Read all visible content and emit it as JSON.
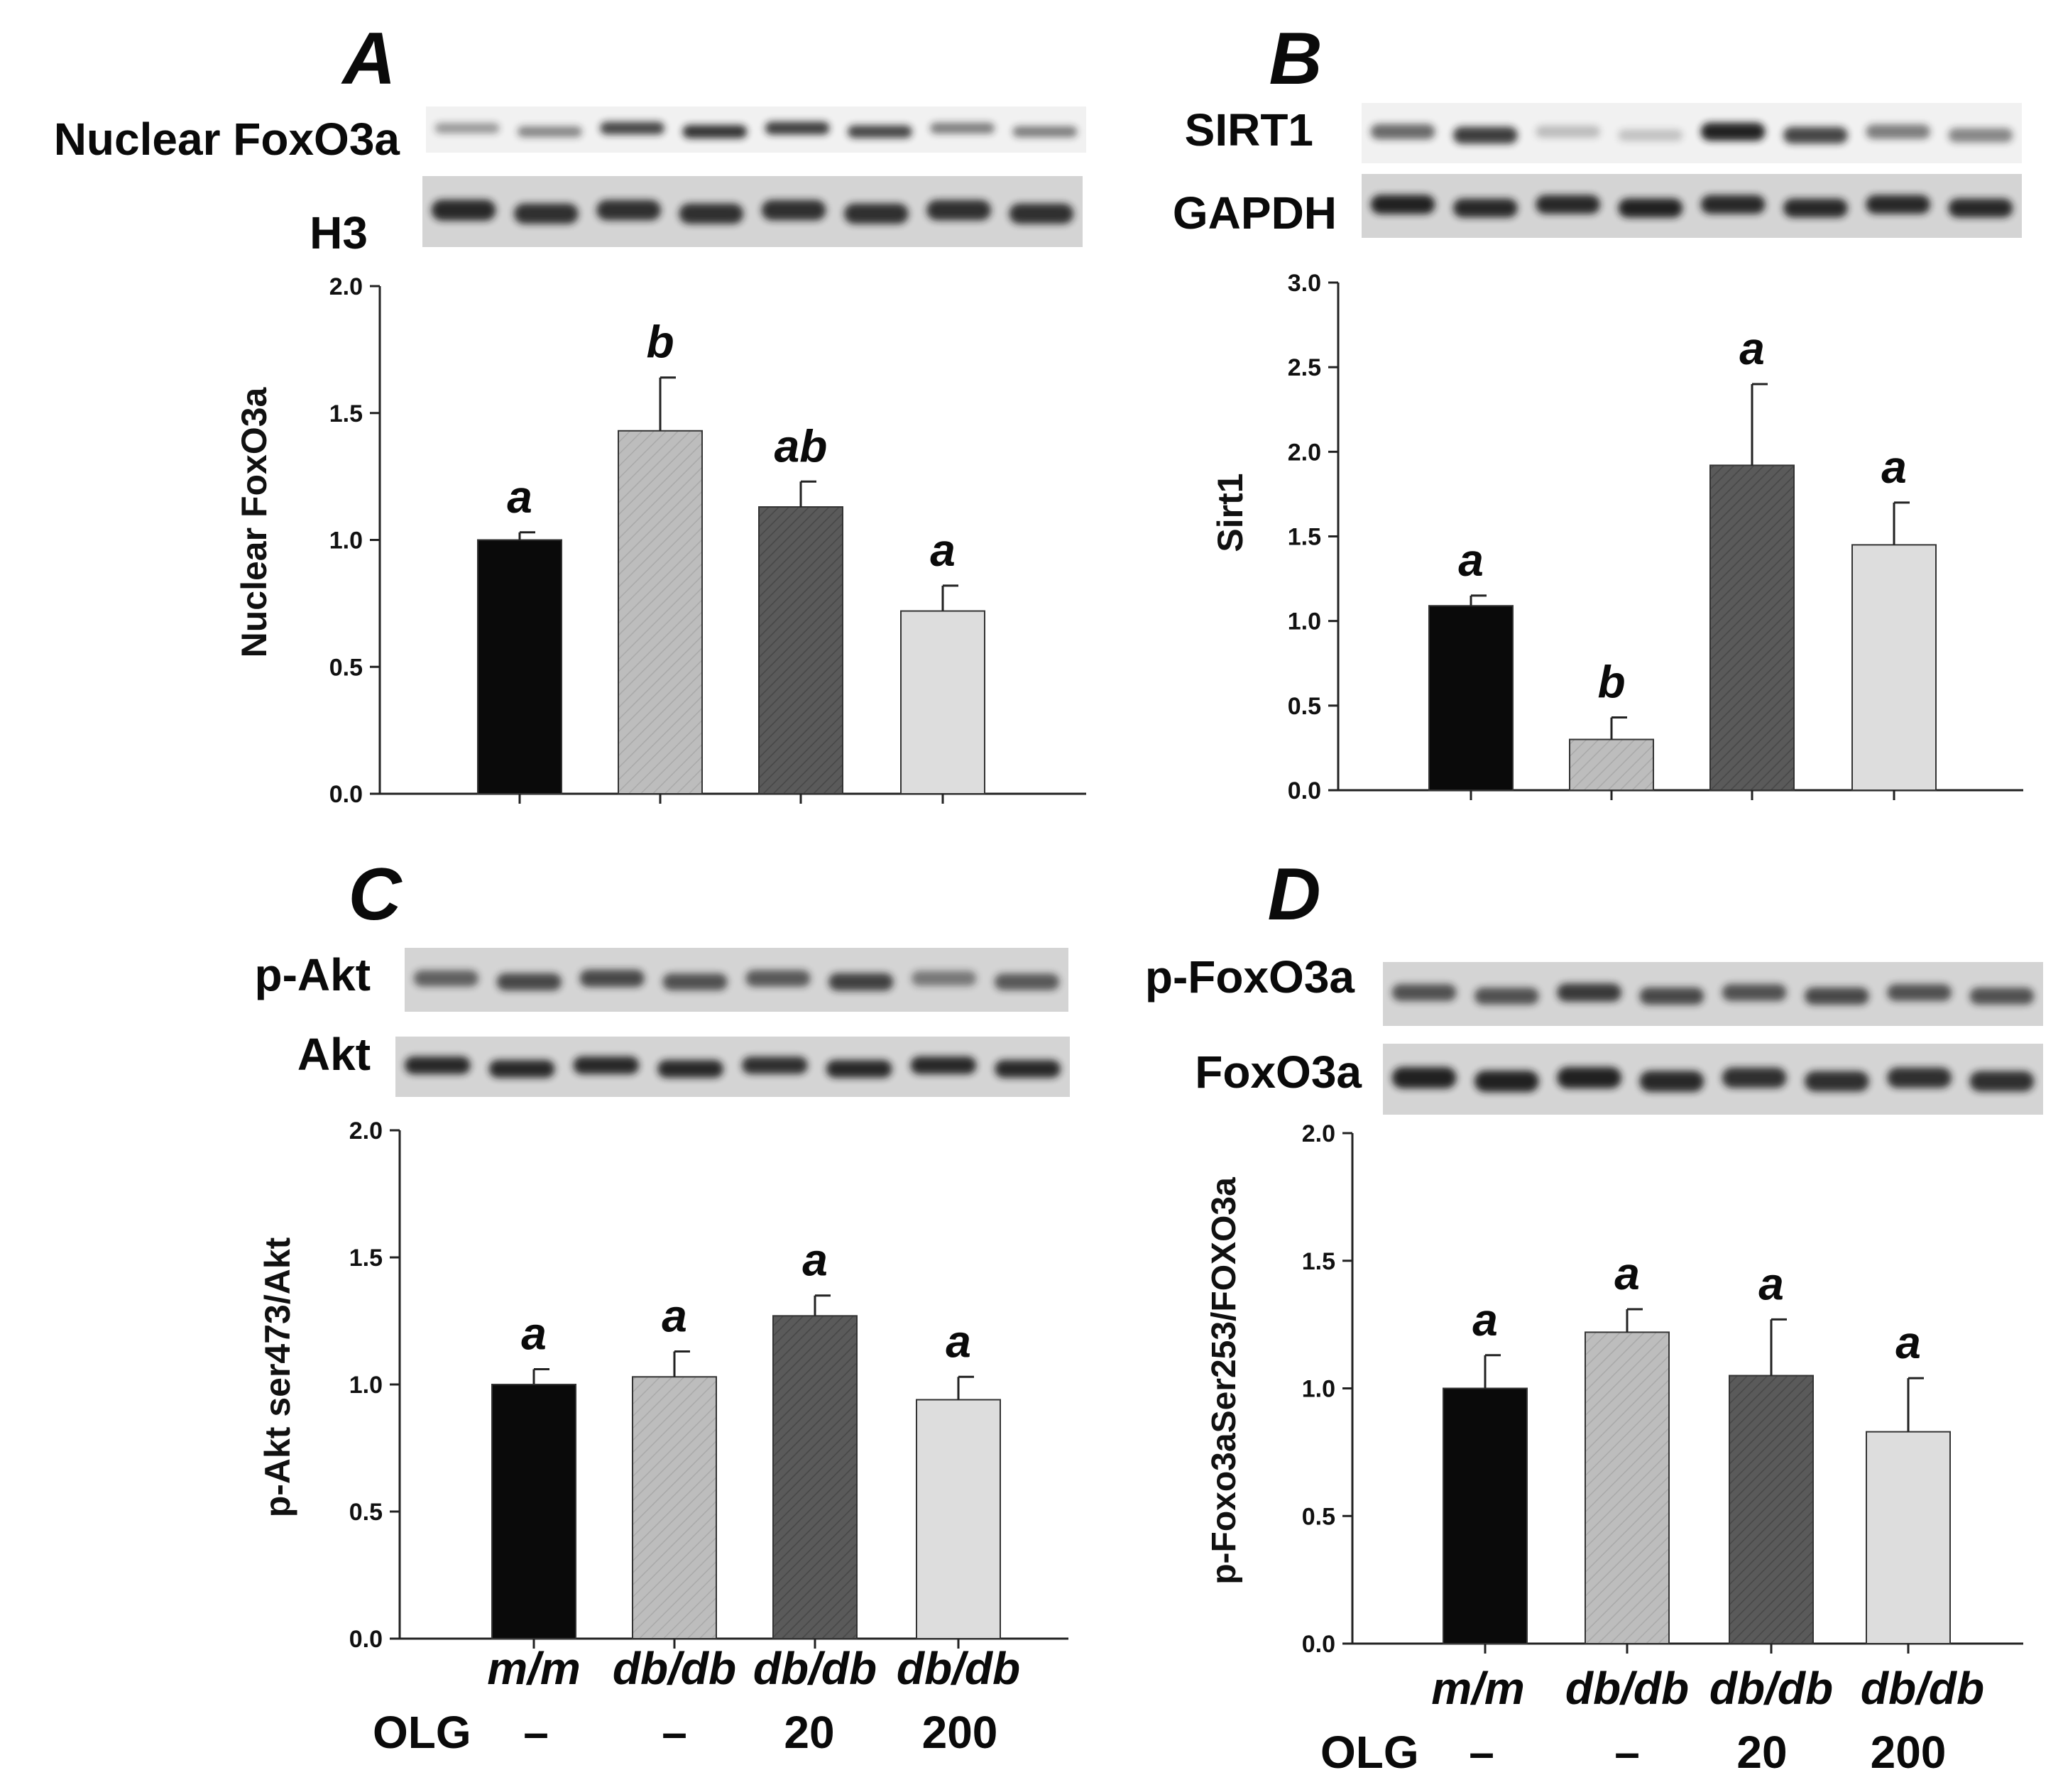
{
  "groups": [
    "m/m",
    "db/db",
    "db/db",
    "db/db"
  ],
  "olg_label": "OLG",
  "olg_doses": [
    "–",
    "–",
    "20",
    "200"
  ],
  "colors": {
    "black": "#0a0a0a",
    "light": "#bdbdbd",
    "dark": "#595959",
    "pale": "#dddddd",
    "blot_bg": "#d4d4d4",
    "band": "#1c1c1c",
    "axis": "#222222"
  },
  "panels": [
    {
      "letter": "A",
      "blots": [
        {
          "label": "Nuclear FoxO3a",
          "intensities": [
            0.35,
            0.45,
            0.8,
            0.9,
            0.85,
            0.8,
            0.5,
            0.5
          ]
        },
        {
          "label": "H3",
          "intensities": [
            0.95,
            0.9,
            0.9,
            0.9,
            0.9,
            0.9,
            0.9,
            0.9
          ]
        }
      ]
    },
    {
      "letter": "B",
      "blots": [
        {
          "label": "SIRT1",
          "intensities": [
            0.6,
            0.85,
            0.15,
            0.12,
            1.0,
            0.8,
            0.5,
            0.45
          ]
        },
        {
          "label": "GAPDH",
          "intensities": [
            1.0,
            0.95,
            0.95,
            1.0,
            0.95,
            0.95,
            0.95,
            0.95
          ]
        }
      ]
    },
    {
      "letter": "C",
      "blots": [
        {
          "label": "p-Akt",
          "intensities": [
            0.6,
            0.75,
            0.75,
            0.7,
            0.65,
            0.8,
            0.45,
            0.65
          ]
        },
        {
          "label": "Akt",
          "intensities": [
            0.95,
            0.95,
            0.95,
            0.95,
            0.9,
            0.95,
            0.95,
            0.95
          ]
        }
      ]
    },
    {
      "letter": "D",
      "blots": [
        {
          "label": "p-FoxO3a",
          "intensities": [
            0.7,
            0.7,
            0.85,
            0.75,
            0.7,
            0.75,
            0.7,
            0.7
          ]
        },
        {
          "label": "FoxO3a",
          "intensities": [
            1.0,
            1.0,
            1.0,
            0.95,
            0.9,
            0.9,
            0.9,
            0.9
          ]
        }
      ]
    }
  ],
  "chart_data": [
    {
      "type": "bar",
      "panel": "A",
      "ylabel": "Nuclear FoxO3a",
      "ylim": [
        0,
        2.0
      ],
      "yticks": [
        "0.0",
        "0.5",
        "1.0",
        "1.5",
        "2.0"
      ],
      "categories": [
        "m/m",
        "db/db",
        "db/db OLG 20",
        "db/db OLG 200"
      ],
      "values": [
        1.0,
        1.43,
        1.13,
        0.72
      ],
      "errors": [
        0.03,
        0.21,
        0.1,
        0.1
      ],
      "labels": [
        "a",
        "b",
        "ab",
        "a"
      ]
    },
    {
      "type": "bar",
      "panel": "B",
      "ylabel": "Sirt1",
      "ylim": [
        0,
        3.0
      ],
      "yticks": [
        "0.0",
        "0.5",
        "1.0",
        "1.5",
        "2.0",
        "2.5",
        "3.0"
      ],
      "categories": [
        "m/m",
        "db/db",
        "db/db OLG 20",
        "db/db OLG 200"
      ],
      "values": [
        1.09,
        0.3,
        1.92,
        1.45
      ],
      "errors": [
        0.06,
        0.13,
        0.48,
        0.25
      ],
      "labels": [
        "a",
        "b",
        "a",
        "a"
      ]
    },
    {
      "type": "bar",
      "panel": "C",
      "ylabel": "p-Akt ser473/Akt",
      "ylim": [
        0,
        2.0
      ],
      "yticks": [
        "0.0",
        "0.5",
        "1.0",
        "1.5",
        "2.0"
      ],
      "categories": [
        "m/m",
        "db/db",
        "db/db OLG 20",
        "db/db OLG 200"
      ],
      "values": [
        1.0,
        1.03,
        1.27,
        0.94
      ],
      "errors": [
        0.06,
        0.1,
        0.08,
        0.09
      ],
      "labels": [
        "a",
        "a",
        "a",
        "a"
      ]
    },
    {
      "type": "bar",
      "panel": "D",
      "ylabel": "p-Foxo3aSer253/FOXO3a",
      "ylim": [
        0,
        2.0
      ],
      "yticks": [
        "0.0",
        "0.5",
        "1.0",
        "1.5",
        "2.0"
      ],
      "categories": [
        "m/m",
        "db/db",
        "db/db OLG 20",
        "db/db OLG 200"
      ],
      "values": [
        1.0,
        1.22,
        1.05,
        0.83
      ],
      "errors": [
        0.13,
        0.09,
        0.22,
        0.21
      ],
      "labels": [
        "a",
        "a",
        "a",
        "a"
      ]
    }
  ]
}
